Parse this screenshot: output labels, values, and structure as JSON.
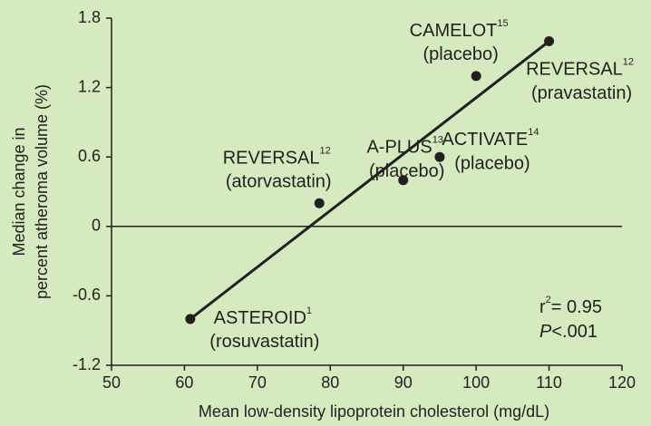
{
  "chart_data": {
    "type": "scatter",
    "x_label": "Mean low-density lipoprotein cholesterol (mg/dL)",
    "y_label": [
      "Median change in",
      "percent atheroma volume (%)"
    ],
    "x": [
      60.8,
      78.5,
      90,
      95,
      100,
      110
    ],
    "y": [
      -0.8,
      0.2,
      0.4,
      0.6,
      1.3,
      1.6
    ],
    "labels": [
      {
        "name": "ASTEROID",
        "ref": "1",
        "note": "(rosuvastatin)"
      },
      {
        "name": "REVERSAL",
        "ref": "12",
        "note": "(atorvastatin)"
      },
      {
        "name": "A-PLUS",
        "ref": "13",
        "note": "(placebo)"
      },
      {
        "name": "ACTIVATE",
        "ref": "14",
        "note": "(placebo)"
      },
      {
        "name": "CAMELOT",
        "ref": "15",
        "note": "(placebo)"
      },
      {
        "name": "REVERSAL",
        "ref": "12",
        "note": "(pravastatin)"
      }
    ],
    "fit_line": {
      "x": [
        60.8,
        110
      ],
      "y": [
        -0.8,
        1.6
      ]
    },
    "stats": {
      "r": "r",
      "r_exp": "2",
      "r_value": "= 0.95",
      "p": "P",
      "p_value": "<.001"
    },
    "color": "#231f20",
    "xlim": [
      50,
      120
    ],
    "xticks": [
      50,
      60,
      70,
      80,
      90,
      100,
      110,
      120
    ],
    "ylim": [
      -1.2,
      1.8
    ],
    "yticks": [
      -1.2,
      -0.6,
      0,
      0.6,
      1.2,
      1.8
    ]
  }
}
